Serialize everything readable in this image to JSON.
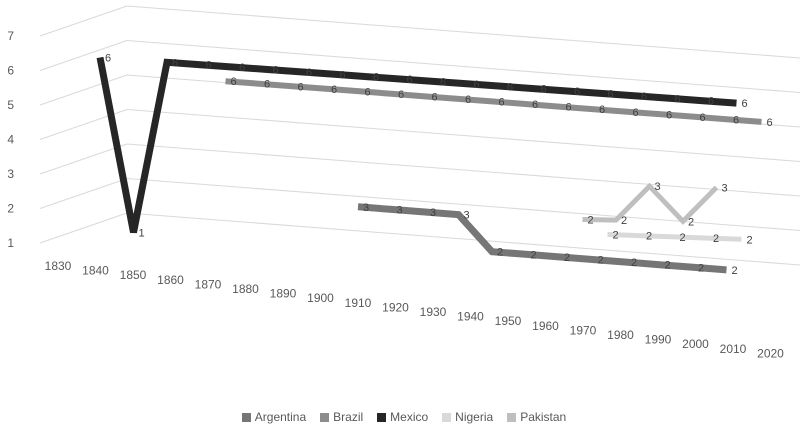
{
  "chart_data": {
    "type": "line",
    "style": "3d",
    "categories": [
      "1830",
      "1840",
      "1850",
      "1860",
      "1870",
      "1880",
      "1890",
      "1900",
      "1910",
      "1920",
      "1930",
      "1940",
      "1950",
      "1960",
      "1970",
      "1980",
      "1990",
      "2000",
      "2010",
      "2020"
    ],
    "ylim": [
      1,
      7
    ],
    "yticks": [
      1,
      2,
      3,
      4,
      5,
      6,
      7
    ],
    "grid": true,
    "legend_position": "bottom",
    "series": [
      {
        "name": "Argentina",
        "color": "#767676",
        "values": [
          null,
          null,
          null,
          null,
          null,
          null,
          null,
          null,
          3,
          3,
          3,
          3,
          2,
          2,
          2,
          2,
          2,
          2,
          2,
          2
        ]
      },
      {
        "name": "Brazil",
        "color": "#8c8c8c",
        "values": [
          null,
          null,
          null,
          6,
          6,
          6,
          6,
          6,
          6,
          6,
          6,
          6,
          6,
          6,
          6,
          6,
          6,
          6,
          6,
          6
        ]
      },
      {
        "name": "Mexico",
        "color": "#262626",
        "values": [
          6,
          1,
          6,
          6,
          6,
          6,
          6,
          6,
          6,
          6,
          6,
          6,
          6,
          6,
          6,
          6,
          6,
          6,
          6,
          6
        ]
      },
      {
        "name": "Nigeria",
        "color": "#d9d9d9",
        "values": [
          null,
          null,
          null,
          null,
          null,
          null,
          null,
          null,
          null,
          null,
          null,
          null,
          null,
          null,
          null,
          2,
          2,
          2,
          2,
          2
        ]
      },
      {
        "name": "Pakistan",
        "color": "#bfbfbf",
        "values": [
          null,
          null,
          null,
          null,
          null,
          null,
          null,
          null,
          null,
          null,
          null,
          null,
          null,
          null,
          null,
          2,
          2,
          3,
          2,
          3
        ]
      }
    ]
  }
}
